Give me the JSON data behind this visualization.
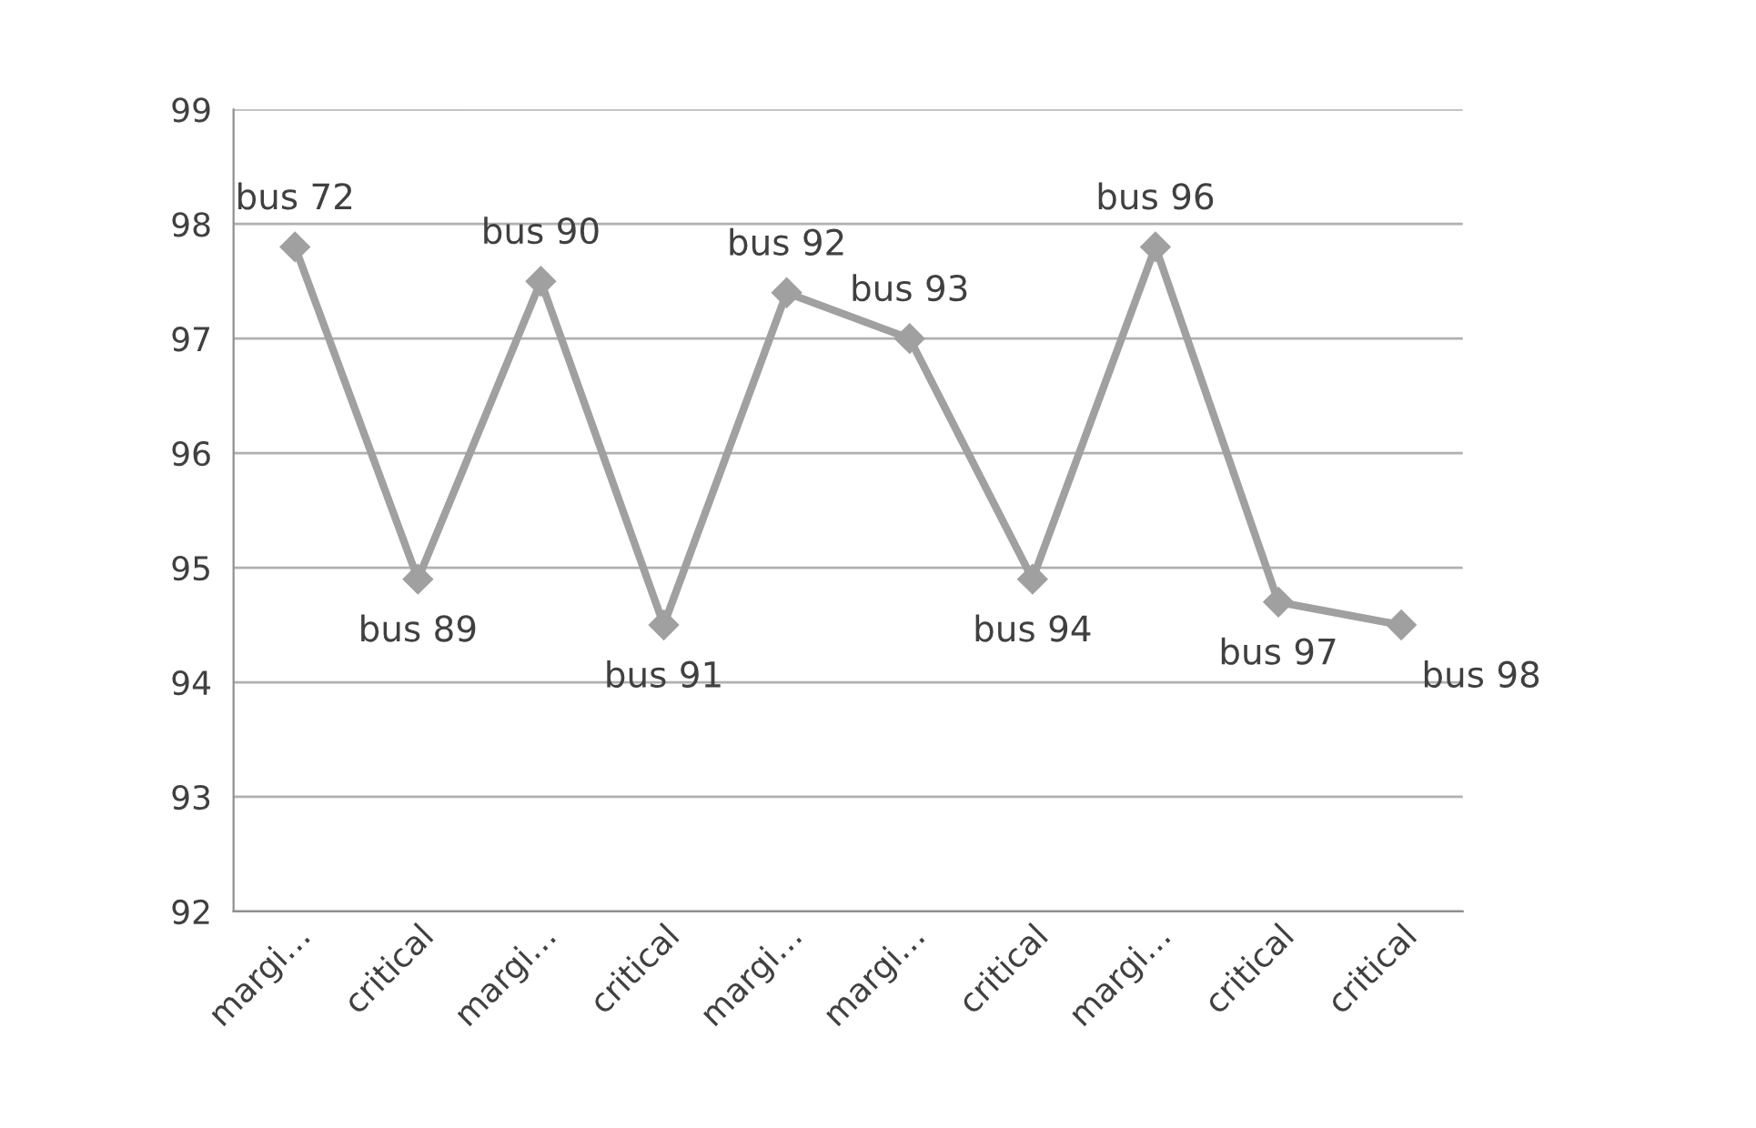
{
  "chart_data": {
    "type": "line",
    "categories": [
      "margi…",
      "critical",
      "margi…",
      "critical",
      "margi…",
      "margi…",
      "critical",
      "margi…",
      "critical",
      "critical"
    ],
    "series": [
      {
        "color": "#a0a0a0",
        "values": [
          97.8,
          94.9,
          97.5,
          94.5,
          97.4,
          97.0,
          94.9,
          97.8,
          94.7,
          94.5
        ],
        "value_labels": [
          "bus 72",
          "bus 89",
          "bus 90",
          "bus 91",
          "bus 92",
          "bus 93",
          "bus 94",
          "bus 96",
          "bus 97",
          "bus 98"
        ]
      }
    ],
    "ylim": [
      92,
      99
    ],
    "yticks": [
      92,
      93,
      94,
      95,
      96,
      97,
      98,
      99
    ],
    "grid": "y",
    "marker": "diamond",
    "line_style": "solid"
  }
}
